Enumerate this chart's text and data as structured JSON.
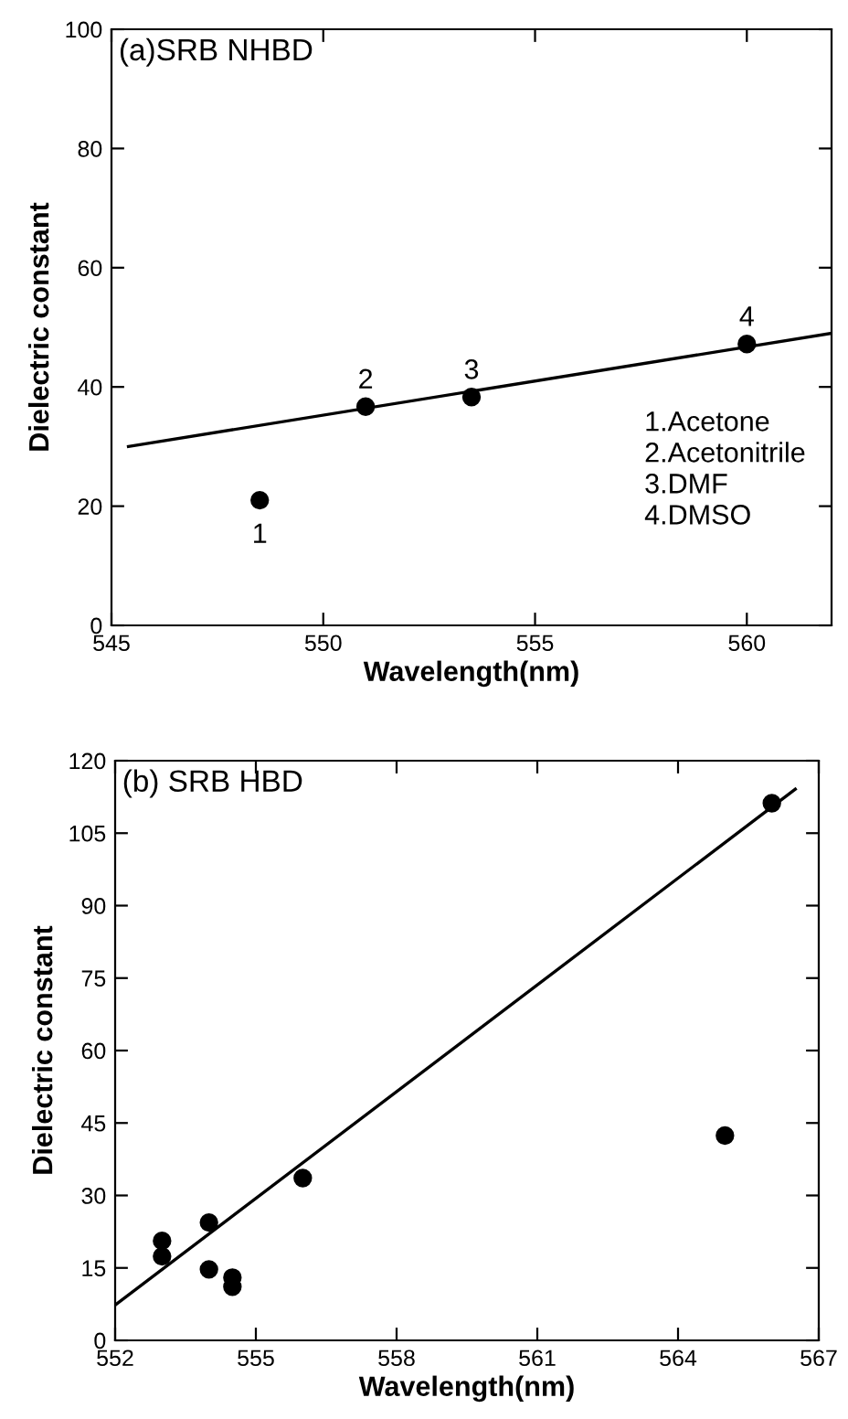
{
  "chart_data": [
    {
      "type": "scatter",
      "title": "(a)SRB NHBD",
      "xlabel": "Wavelength(nm)",
      "ylabel": "Dielectric constant",
      "xlim": [
        545,
        562
      ],
      "xticks": [
        545,
        550,
        555,
        560
      ],
      "ylim": [
        0,
        100
      ],
      "yticks": [
        0,
        20,
        40,
        60,
        80,
        100
      ],
      "grid": false,
      "legend": false,
      "annotations": [
        {
          "text": "1",
          "x": 548.5,
          "y": 21
        },
        {
          "text": "2",
          "x": 551.0,
          "y": 36.7
        },
        {
          "text": "3",
          "x": 553.5,
          "y": 38.3
        },
        {
          "text": "4",
          "x": 560.0,
          "y": 47.2
        },
        "1.Acetone",
        "2.Acetonitrile",
        "3.DMF",
        "4.DMSO"
      ],
      "series": [
        {
          "color": "#000000",
          "marker": "circle",
          "x": [
            548.5,
            551.0,
            553.5,
            560.0
          ],
          "values": [
            21,
            36.7,
            38.3,
            47.2
          ]
        },
        {
          "type": "line",
          "marker": "none",
          "color": "#000000",
          "x": [
            545.4,
            562
          ],
          "values": [
            30,
            49
          ]
        }
      ]
    },
    {
      "type": "scatter",
      "title": "(b) SRB HBD",
      "xlabel": "Wavelength(nm)",
      "ylabel": "Dielectric constant",
      "xlim": [
        552,
        567
      ],
      "xticks": [
        552,
        555,
        558,
        561,
        564,
        567
      ],
      "ylim": [
        0,
        120
      ],
      "yticks": [
        0,
        15,
        30,
        45,
        60,
        75,
        90,
        105,
        120
      ],
      "grid": false,
      "legend": false,
      "series": [
        {
          "color": "#000000",
          "marker": "circle",
          "x": [
            553.0,
            553.0,
            554.0,
            554.0,
            554.5,
            554.5,
            556.0,
            565.0,
            566.0
          ],
          "values": [
            20.6,
            17.4,
            24.4,
            14.7,
            13.0,
            11.1,
            33.6,
            42.4,
            111.2
          ]
        },
        {
          "type": "line",
          "marker": "none",
          "color": "#000000",
          "x": [
            552,
            566.5
          ],
          "values": [
            7.3,
            114.1
          ]
        }
      ]
    }
  ]
}
